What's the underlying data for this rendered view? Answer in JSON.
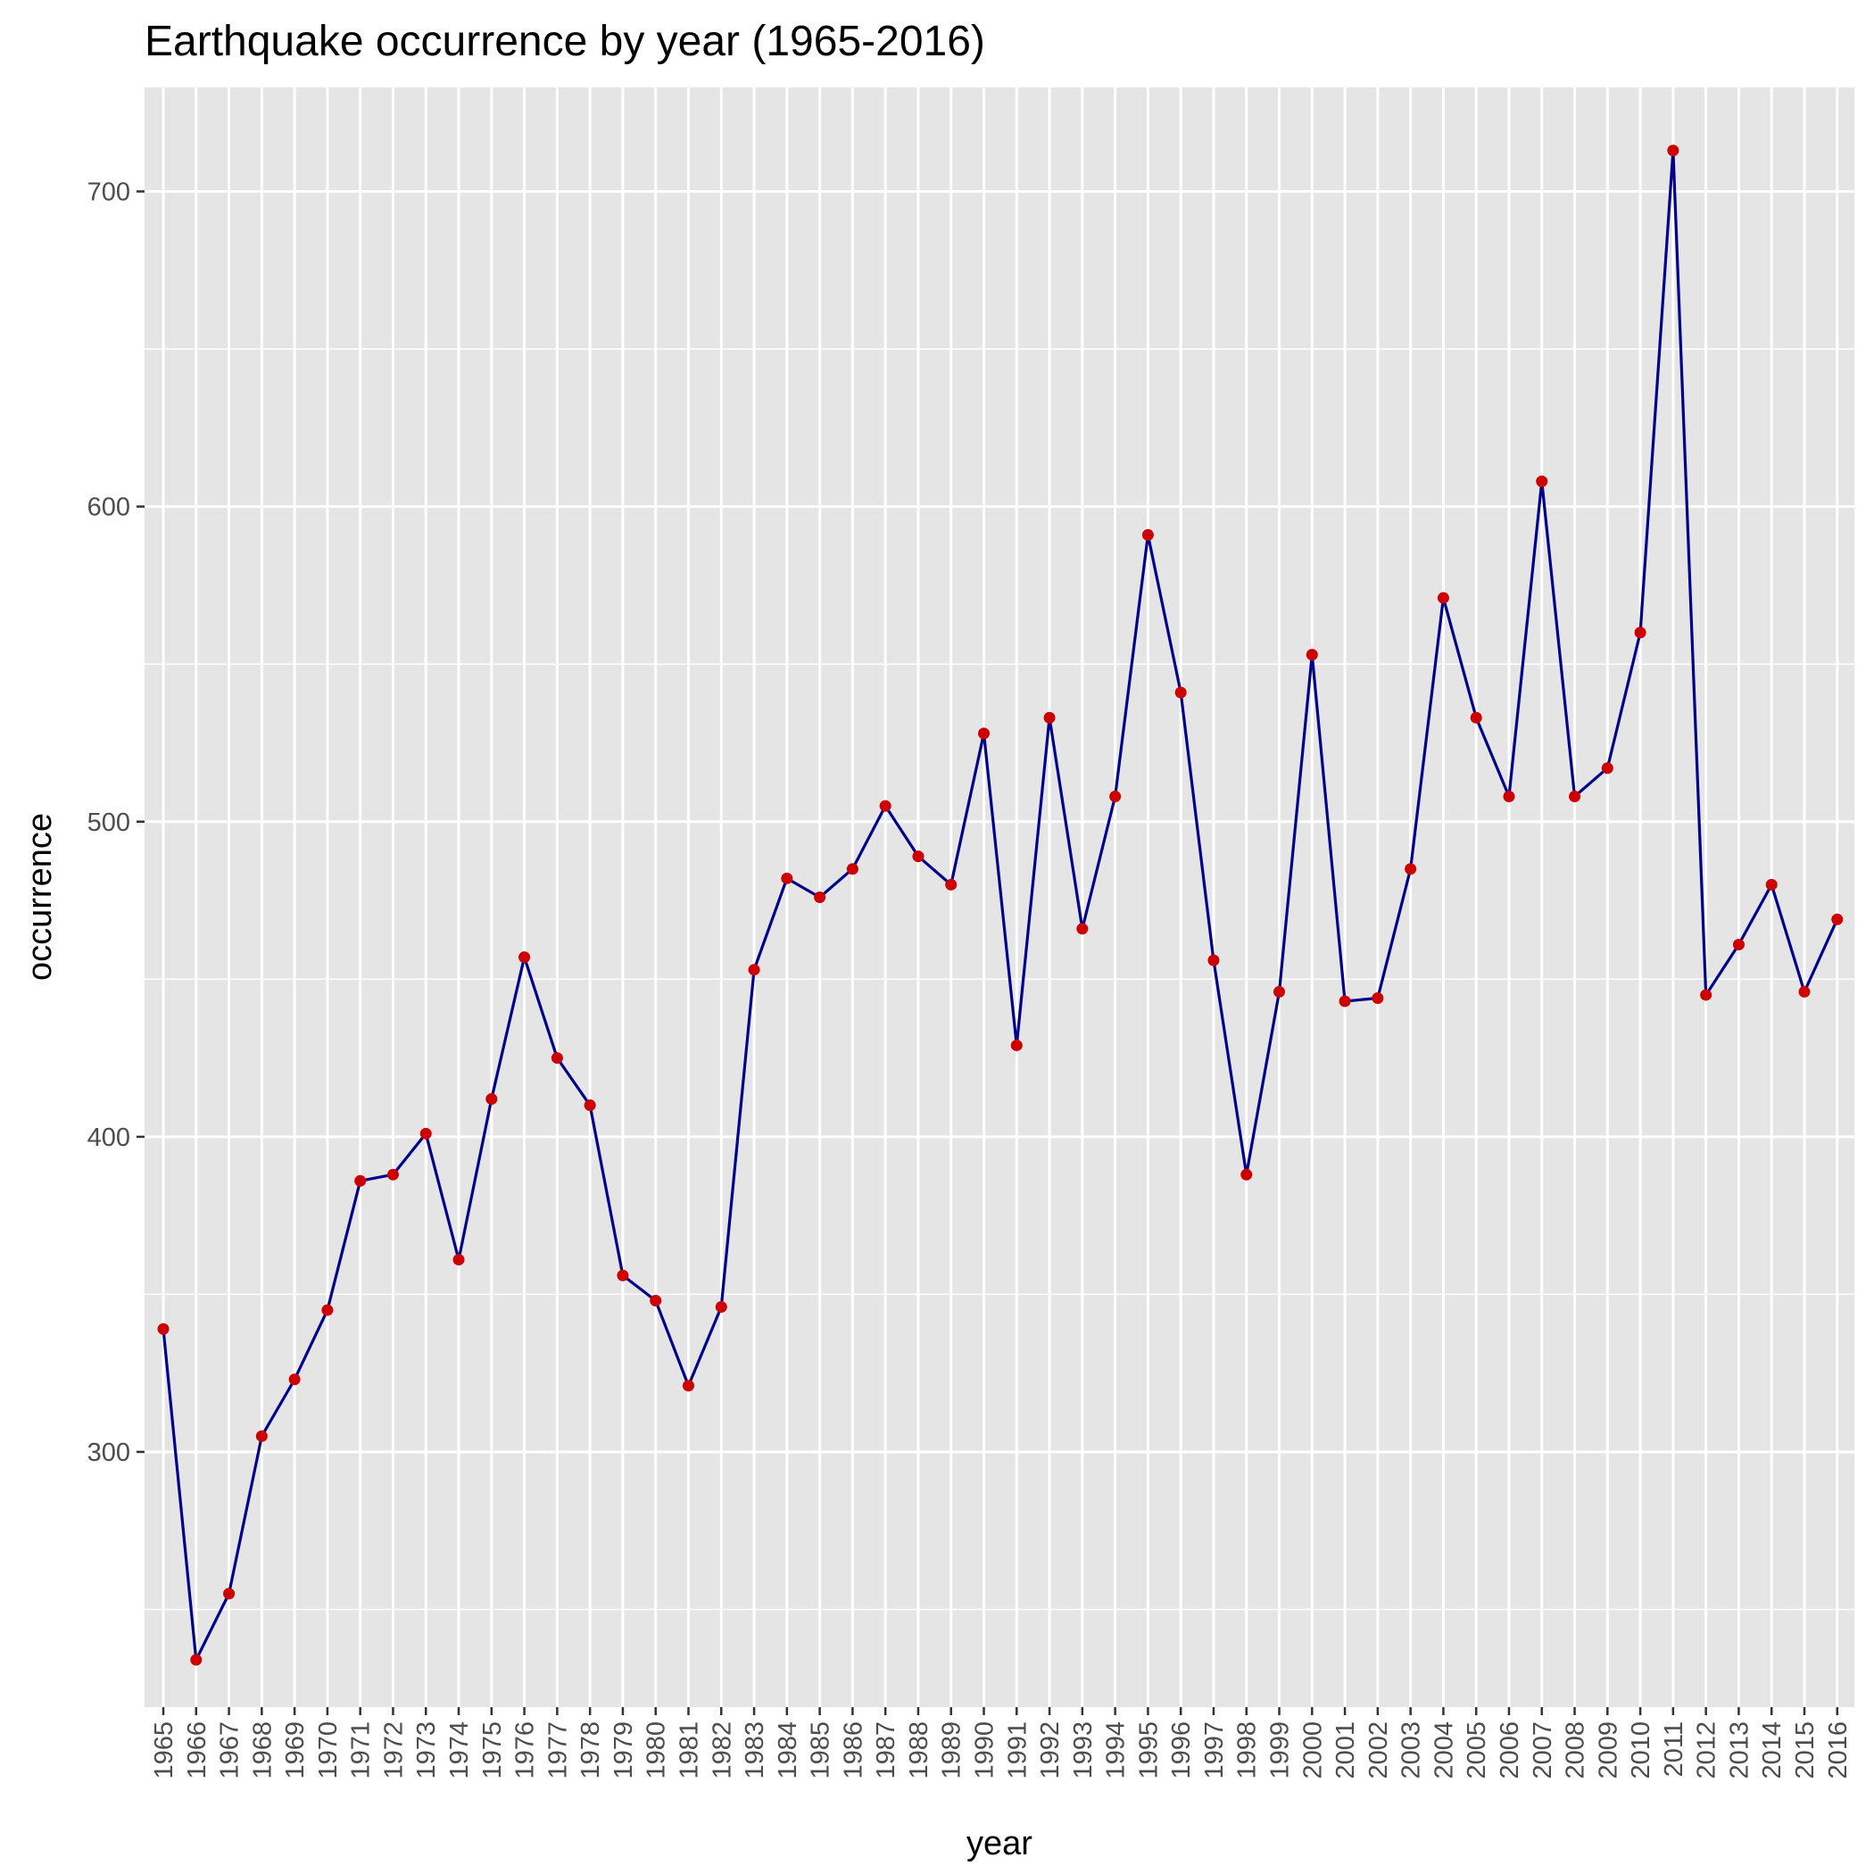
{
  "chart_data": {
    "type": "line",
    "title": "Earthquake occurrence by year (1965-2016)",
    "xlabel": "year",
    "ylabel": "occurrence",
    "x": [
      "1965",
      "1966",
      "1967",
      "1968",
      "1969",
      "1970",
      "1971",
      "1972",
      "1973",
      "1974",
      "1975",
      "1976",
      "1977",
      "1978",
      "1979",
      "1980",
      "1981",
      "1982",
      "1983",
      "1984",
      "1985",
      "1986",
      "1987",
      "1988",
      "1989",
      "1990",
      "1991",
      "1992",
      "1993",
      "1994",
      "1995",
      "1996",
      "1997",
      "1998",
      "1999",
      "2000",
      "2001",
      "2002",
      "2003",
      "2004",
      "2005",
      "2006",
      "2007",
      "2008",
      "2009",
      "2010",
      "2011",
      "2012",
      "2013",
      "2014",
      "2015",
      "2016"
    ],
    "series": [
      {
        "values": [
          339,
          234,
          255,
          305,
          323,
          345,
          386,
          388,
          401,
          361,
          412,
          457,
          425,
          410,
          356,
          348,
          321,
          346,
          453,
          482,
          476,
          485,
          505,
          489,
          480,
          528,
          429,
          533,
          466,
          508,
          591,
          541,
          456,
          388,
          446,
          553,
          443,
          444,
          485,
          571,
          533,
          508,
          608,
          508,
          517,
          560,
          713,
          445,
          461,
          480,
          446,
          469
        ]
      }
    ],
    "ylim": [
      219,
      733
    ],
    "yticks": [
      300,
      400,
      500,
      600,
      700
    ],
    "grid": true,
    "line_color": "#00008b",
    "point_color": "#cc0000",
    "panel_color": "#e5e5e5",
    "grid_color": "#ffffff"
  }
}
